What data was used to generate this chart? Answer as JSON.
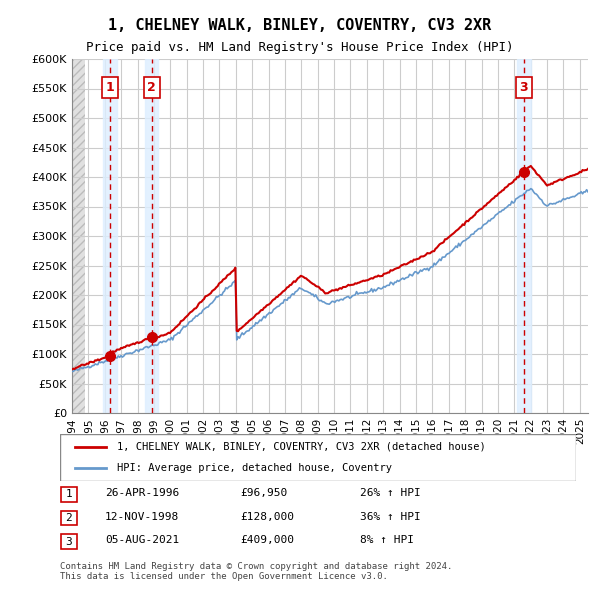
{
  "title": "1, CHELNEY WALK, BINLEY, COVENTRY, CV3 2XR",
  "subtitle": "Price paid vs. HM Land Registry's House Price Index (HPI)",
  "ylim": [
    0,
    600000
  ],
  "yticks": [
    0,
    50000,
    100000,
    150000,
    200000,
    250000,
    300000,
    350000,
    400000,
    450000,
    500000,
    550000,
    600000
  ],
  "ytick_labels": [
    "£0",
    "£50K",
    "£100K",
    "£150K",
    "£200K",
    "£250K",
    "£300K",
    "£350K",
    "£400K",
    "£450K",
    "£500K",
    "£550K",
    "£600K"
  ],
  "xlim_start": 1994.0,
  "xlim_end": 2025.5,
  "xtick_years": [
    1994,
    1995,
    1996,
    1997,
    1998,
    1999,
    2000,
    2001,
    2002,
    2003,
    2004,
    2005,
    2006,
    2007,
    2008,
    2009,
    2010,
    2011,
    2012,
    2013,
    2014,
    2015,
    2016,
    2017,
    2018,
    2019,
    2020,
    2021,
    2022,
    2023,
    2024,
    2025
  ],
  "sales": [
    {
      "date_year": 1996.32,
      "price": 96950,
      "label": "1"
    },
    {
      "date_year": 1998.87,
      "price": 128000,
      "label": "2"
    },
    {
      "date_year": 2021.59,
      "price": 409000,
      "label": "3"
    }
  ],
  "sale_color": "#cc0000",
  "hpi_color": "#6699cc",
  "legend_label_sale": "1, CHELNEY WALK, BINLEY, COVENTRY, CV3 2XR (detached house)",
  "legend_label_hpi": "HPI: Average price, detached house, Coventry",
  "table_rows": [
    {
      "num": "1",
      "date": "26-APR-1996",
      "price": "£96,950",
      "hpi": "26% ↑ HPI"
    },
    {
      "num": "2",
      "date": "12-NOV-1998",
      "price": "£128,000",
      "hpi": "36% ↑ HPI"
    },
    {
      "num": "3",
      "date": "05-AUG-2021",
      "price": "£409,000",
      "hpi": "8% ↑ HPI"
    }
  ],
  "footnote": "Contains HM Land Registry data © Crown copyright and database right 2024.\nThis data is licensed under the Open Government Licence v3.0.",
  "background_hatch_color": "#cccccc",
  "shade_color": "#ddeeff",
  "grid_color": "#cccccc"
}
